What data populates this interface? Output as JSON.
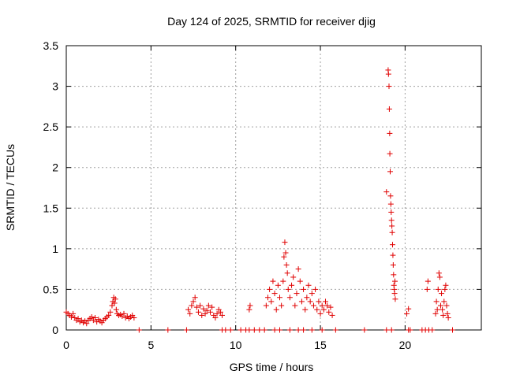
{
  "chart_data": {
    "type": "scatter",
    "title": "Day 124 of 2025, SRMTID for receiver djig",
    "xlabel": "GPS time / hours",
    "ylabel": "SRMTID / TECUs",
    "xlim": [
      0,
      24.5
    ],
    "ylim": [
      0,
      3.5
    ],
    "xticks": [
      0,
      5,
      10,
      15,
      20
    ],
    "xtick_labels": [
      "0",
      "5",
      "10",
      "15",
      "20"
    ],
    "yticks": [
      0,
      0.5,
      1,
      1.5,
      2,
      2.5,
      3,
      3.5
    ],
    "ytick_labels": [
      "0",
      "0.5",
      "1",
      "1.5",
      "2",
      "2.5",
      "3",
      "3.5"
    ],
    "grid": true,
    "marker": "plus",
    "color": "#e00000",
    "series": [
      {
        "name": "SRMTID",
        "points": [
          [
            0.0,
            0.22
          ],
          [
            0.1,
            0.2
          ],
          [
            0.2,
            0.18
          ],
          [
            0.3,
            0.16
          ],
          [
            0.4,
            0.2
          ],
          [
            0.5,
            0.15
          ],
          [
            0.6,
            0.12
          ],
          [
            0.7,
            0.14
          ],
          [
            0.8,
            0.1
          ],
          [
            0.9,
            0.12
          ],
          [
            1.0,
            0.09
          ],
          [
            1.1,
            0.11
          ],
          [
            1.2,
            0.08
          ],
          [
            1.3,
            0.12
          ],
          [
            1.4,
            0.14
          ],
          [
            1.5,
            0.16
          ],
          [
            1.6,
            0.12
          ],
          [
            1.7,
            0.15
          ],
          [
            1.8,
            0.1
          ],
          [
            1.9,
            0.13
          ],
          [
            2.0,
            0.11
          ],
          [
            2.1,
            0.09
          ],
          [
            2.2,
            0.12
          ],
          [
            2.3,
            0.14
          ],
          [
            2.4,
            0.16
          ],
          [
            2.5,
            0.18
          ],
          [
            2.6,
            0.22
          ],
          [
            2.7,
            0.3
          ],
          [
            2.75,
            0.35
          ],
          [
            2.8,
            0.4
          ],
          [
            2.85,
            0.33
          ],
          [
            2.9,
            0.38
          ],
          [
            2.95,
            0.25
          ],
          [
            3.0,
            0.2
          ],
          [
            3.1,
            0.18
          ],
          [
            3.2,
            0.19
          ],
          [
            3.3,
            0.17
          ],
          [
            3.4,
            0.2
          ],
          [
            3.5,
            0.15
          ],
          [
            3.6,
            0.17
          ],
          [
            3.7,
            0.14
          ],
          [
            3.8,
            0.16
          ],
          [
            3.9,
            0.18
          ],
          [
            4.0,
            0.15
          ],
          [
            4.3,
            0.0
          ],
          [
            6.0,
            0.0
          ],
          [
            7.1,
            0.0
          ],
          [
            7.2,
            0.25
          ],
          [
            7.3,
            0.2
          ],
          [
            7.4,
            0.3
          ],
          [
            7.5,
            0.35
          ],
          [
            7.6,
            0.4
          ],
          [
            7.7,
            0.28
          ],
          [
            7.8,
            0.22
          ],
          [
            7.9,
            0.3
          ],
          [
            8.0,
            0.18
          ],
          [
            8.1,
            0.26
          ],
          [
            8.2,
            0.2
          ],
          [
            8.3,
            0.24
          ],
          [
            8.4,
            0.3
          ],
          [
            8.5,
            0.22
          ],
          [
            8.6,
            0.28
          ],
          [
            8.7,
            0.18
          ],
          [
            8.8,
            0.15
          ],
          [
            8.9,
            0.2
          ],
          [
            9.0,
            0.25
          ],
          [
            9.1,
            0.22
          ],
          [
            9.2,
            0.18
          ],
          [
            9.2,
            0.0
          ],
          [
            9.4,
            0.0
          ],
          [
            9.7,
            0.0
          ],
          [
            10.3,
            0.0
          ],
          [
            10.6,
            0.0
          ],
          [
            10.8,
            0.0
          ],
          [
            11.1,
            0.0
          ],
          [
            11.4,
            0.0
          ],
          [
            11.7,
            0.0
          ],
          [
            10.8,
            0.25
          ],
          [
            10.85,
            0.3
          ],
          [
            11.8,
            0.3
          ],
          [
            11.9,
            0.4
          ],
          [
            12.0,
            0.5
          ],
          [
            12.1,
            0.35
          ],
          [
            12.2,
            0.6
          ],
          [
            12.3,
            0.45
          ],
          [
            12.4,
            0.25
          ],
          [
            12.5,
            0.55
          ],
          [
            12.6,
            0.4
          ],
          [
            12.7,
            0.3
          ],
          [
            12.8,
            0.6
          ],
          [
            12.85,
            0.9
          ],
          [
            12.9,
            1.08
          ],
          [
            12.95,
            0.95
          ],
          [
            13.0,
            0.8
          ],
          [
            13.05,
            0.7
          ],
          [
            13.1,
            0.5
          ],
          [
            13.2,
            0.4
          ],
          [
            13.3,
            0.55
          ],
          [
            13.4,
            0.65
          ],
          [
            13.5,
            0.3
          ],
          [
            13.6,
            0.45
          ],
          [
            13.7,
            0.75
          ],
          [
            13.8,
            0.6
          ],
          [
            13.9,
            0.35
          ],
          [
            14.0,
            0.5
          ],
          [
            14.1,
            0.25
          ],
          [
            14.2,
            0.4
          ],
          [
            14.3,
            0.55
          ],
          [
            14.4,
            0.35
          ],
          [
            14.5,
            0.45
          ],
          [
            14.6,
            0.3
          ],
          [
            14.7,
            0.5
          ],
          [
            14.8,
            0.25
          ],
          [
            14.9,
            0.35
          ],
          [
            15.0,
            0.2
          ],
          [
            15.1,
            0.3
          ],
          [
            15.2,
            0.25
          ],
          [
            15.3,
            0.35
          ],
          [
            15.4,
            0.3
          ],
          [
            15.5,
            0.22
          ],
          [
            15.6,
            0.28
          ],
          [
            15.7,
            0.18
          ],
          [
            12.3,
            0.0
          ],
          [
            12.6,
            0.0
          ],
          [
            13.2,
            0.0
          ],
          [
            13.7,
            0.0
          ],
          [
            14.0,
            0.0
          ],
          [
            14.5,
            0.0
          ],
          [
            15.1,
            0.0
          ],
          [
            15.9,
            0.0
          ],
          [
            17.6,
            0.0
          ],
          [
            18.9,
            0.0
          ],
          [
            19.2,
            0.0
          ],
          [
            18.9,
            1.7
          ],
          [
            19.0,
            3.2
          ],
          [
            19.02,
            3.15
          ],
          [
            19.05,
            3.0
          ],
          [
            19.07,
            2.72
          ],
          [
            19.09,
            2.42
          ],
          [
            19.1,
            2.17
          ],
          [
            19.12,
            1.95
          ],
          [
            19.14,
            1.65
          ],
          [
            19.16,
            1.55
          ],
          [
            19.18,
            1.45
          ],
          [
            19.2,
            1.35
          ],
          [
            19.22,
            1.28
          ],
          [
            19.24,
            1.2
          ],
          [
            19.26,
            1.05
          ],
          [
            19.28,
            0.92
          ],
          [
            19.3,
            0.8
          ],
          [
            19.32,
            0.68
          ],
          [
            19.34,
            0.55
          ],
          [
            19.36,
            0.5
          ],
          [
            19.38,
            0.45
          ],
          [
            19.4,
            0.6
          ],
          [
            19.42,
            0.38
          ],
          [
            20.1,
            0.2
          ],
          [
            20.2,
            0.26
          ],
          [
            20.2,
            0.0
          ],
          [
            20.3,
            0.0
          ],
          [
            21.0,
            0.0
          ],
          [
            21.2,
            0.0
          ],
          [
            21.4,
            0.0
          ],
          [
            21.6,
            0.0
          ],
          [
            21.3,
            0.5
          ],
          [
            21.35,
            0.6
          ],
          [
            21.8,
            0.2
          ],
          [
            21.85,
            0.35
          ],
          [
            21.9,
            0.25
          ],
          [
            21.95,
            0.5
          ],
          [
            22.0,
            0.7
          ],
          [
            22.05,
            0.65
          ],
          [
            22.1,
            0.3
          ],
          [
            22.15,
            0.45
          ],
          [
            22.2,
            0.25
          ],
          [
            22.25,
            0.18
          ],
          [
            22.3,
            0.35
          ],
          [
            22.35,
            0.5
          ],
          [
            22.4,
            0.55
          ],
          [
            22.45,
            0.3
          ],
          [
            22.5,
            0.2
          ],
          [
            22.55,
            0.15
          ],
          [
            22.8,
            0.0
          ]
        ]
      }
    ]
  }
}
